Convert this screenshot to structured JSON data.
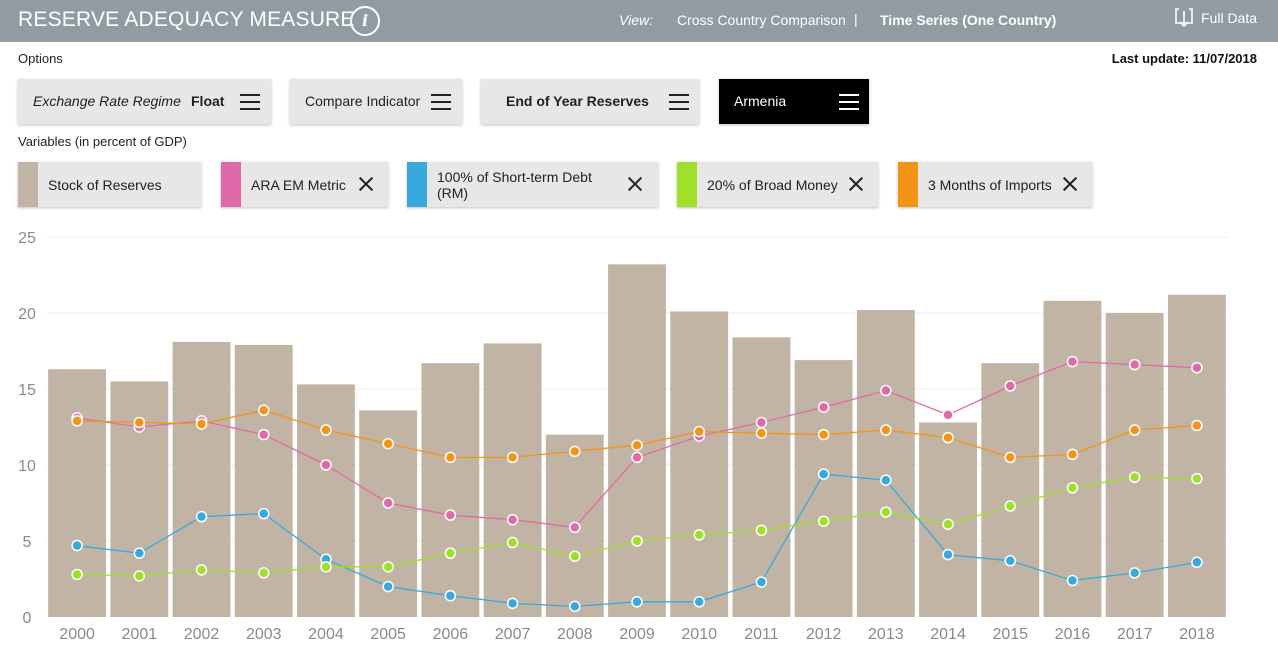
{
  "header": {
    "title": "RESERVE ADEQUACY MEASURE",
    "view_label": "View:",
    "view_cross": "Cross Country Comparison",
    "view_sep": "|",
    "view_time": "Time Series (One Country)",
    "full_data": "Full Data",
    "info_glyph": "i"
  },
  "options": {
    "label": "Options",
    "last_update": "Last update: 11/07/2018",
    "regime_label": "Exchange Rate Regime",
    "regime_value": "Float",
    "compare": "Compare Indicator",
    "reserves": "End of Year Reserves",
    "country": "Armenia"
  },
  "variables": {
    "label": "Variables (in percent of GDP)",
    "items": [
      {
        "label": "Stock of Reserves",
        "color": "#c2b4a5"
      },
      {
        "label": "ARA EM Metric",
        "color": "#e06aa9"
      },
      {
        "label": "100% of Short-term Debt (RM)",
        "color": "#37a9dd"
      },
      {
        "label": "20% of Broad Money",
        "color": "#9fe02b"
      },
      {
        "label": "3 Months of Imports",
        "color": "#f39416"
      }
    ]
  },
  "chart_data": {
    "type": "bar",
    "ylim": [
      0,
      25
    ],
    "yticks": [
      0,
      5,
      10,
      15,
      20,
      25
    ],
    "grid": true,
    "categories": [
      "2000",
      "2001",
      "2002",
      "2003",
      "2004",
      "2005",
      "2006",
      "2007",
      "2008",
      "2009",
      "2010",
      "2011",
      "2012",
      "2013",
      "2014",
      "2015",
      "2016",
      "2017",
      "2018"
    ],
    "bars": {
      "name": "Stock of Reserves",
      "color": "#c2b4a5",
      "values": [
        16.3,
        15.5,
        18.1,
        17.9,
        15.3,
        13.6,
        16.7,
        18.0,
        12.0,
        23.2,
        20.1,
        18.4,
        16.9,
        20.2,
        12.8,
        16.7,
        20.8,
        20.0,
        21.2
      ]
    },
    "series": [
      {
        "name": "ARA EM Metric",
        "color": "#e06aa9",
        "values": [
          13.1,
          12.5,
          12.9,
          12.0,
          10.0,
          7.5,
          6.7,
          6.4,
          5.9,
          10.5,
          11.9,
          12.8,
          13.8,
          14.9,
          13.3,
          15.2,
          16.8,
          16.6,
          16.4
        ]
      },
      {
        "name": "100% of Short-term Debt (RM)",
        "color": "#37a9dd",
        "values": [
          4.7,
          4.2,
          6.6,
          6.8,
          3.8,
          2.0,
          1.4,
          0.9,
          0.7,
          1.0,
          1.0,
          2.3,
          9.4,
          9.0,
          4.1,
          3.7,
          2.4,
          2.9,
          3.6
        ]
      },
      {
        "name": "20% of Broad Money",
        "color": "#9fe02b",
        "values": [
          2.8,
          2.7,
          3.1,
          2.9,
          3.3,
          3.3,
          4.2,
          4.9,
          4.0,
          5.0,
          5.4,
          5.7,
          6.3,
          6.9,
          6.1,
          7.3,
          8.5,
          9.2,
          9.1
        ]
      },
      {
        "name": "3 Months of Imports",
        "color": "#f39416",
        "values": [
          12.9,
          12.8,
          12.7,
          13.6,
          12.3,
          11.4,
          10.5,
          10.5,
          10.9,
          11.3,
          12.2,
          12.1,
          12.0,
          12.3,
          11.8,
          10.5,
          10.7,
          12.3,
          12.6
        ]
      }
    ]
  }
}
